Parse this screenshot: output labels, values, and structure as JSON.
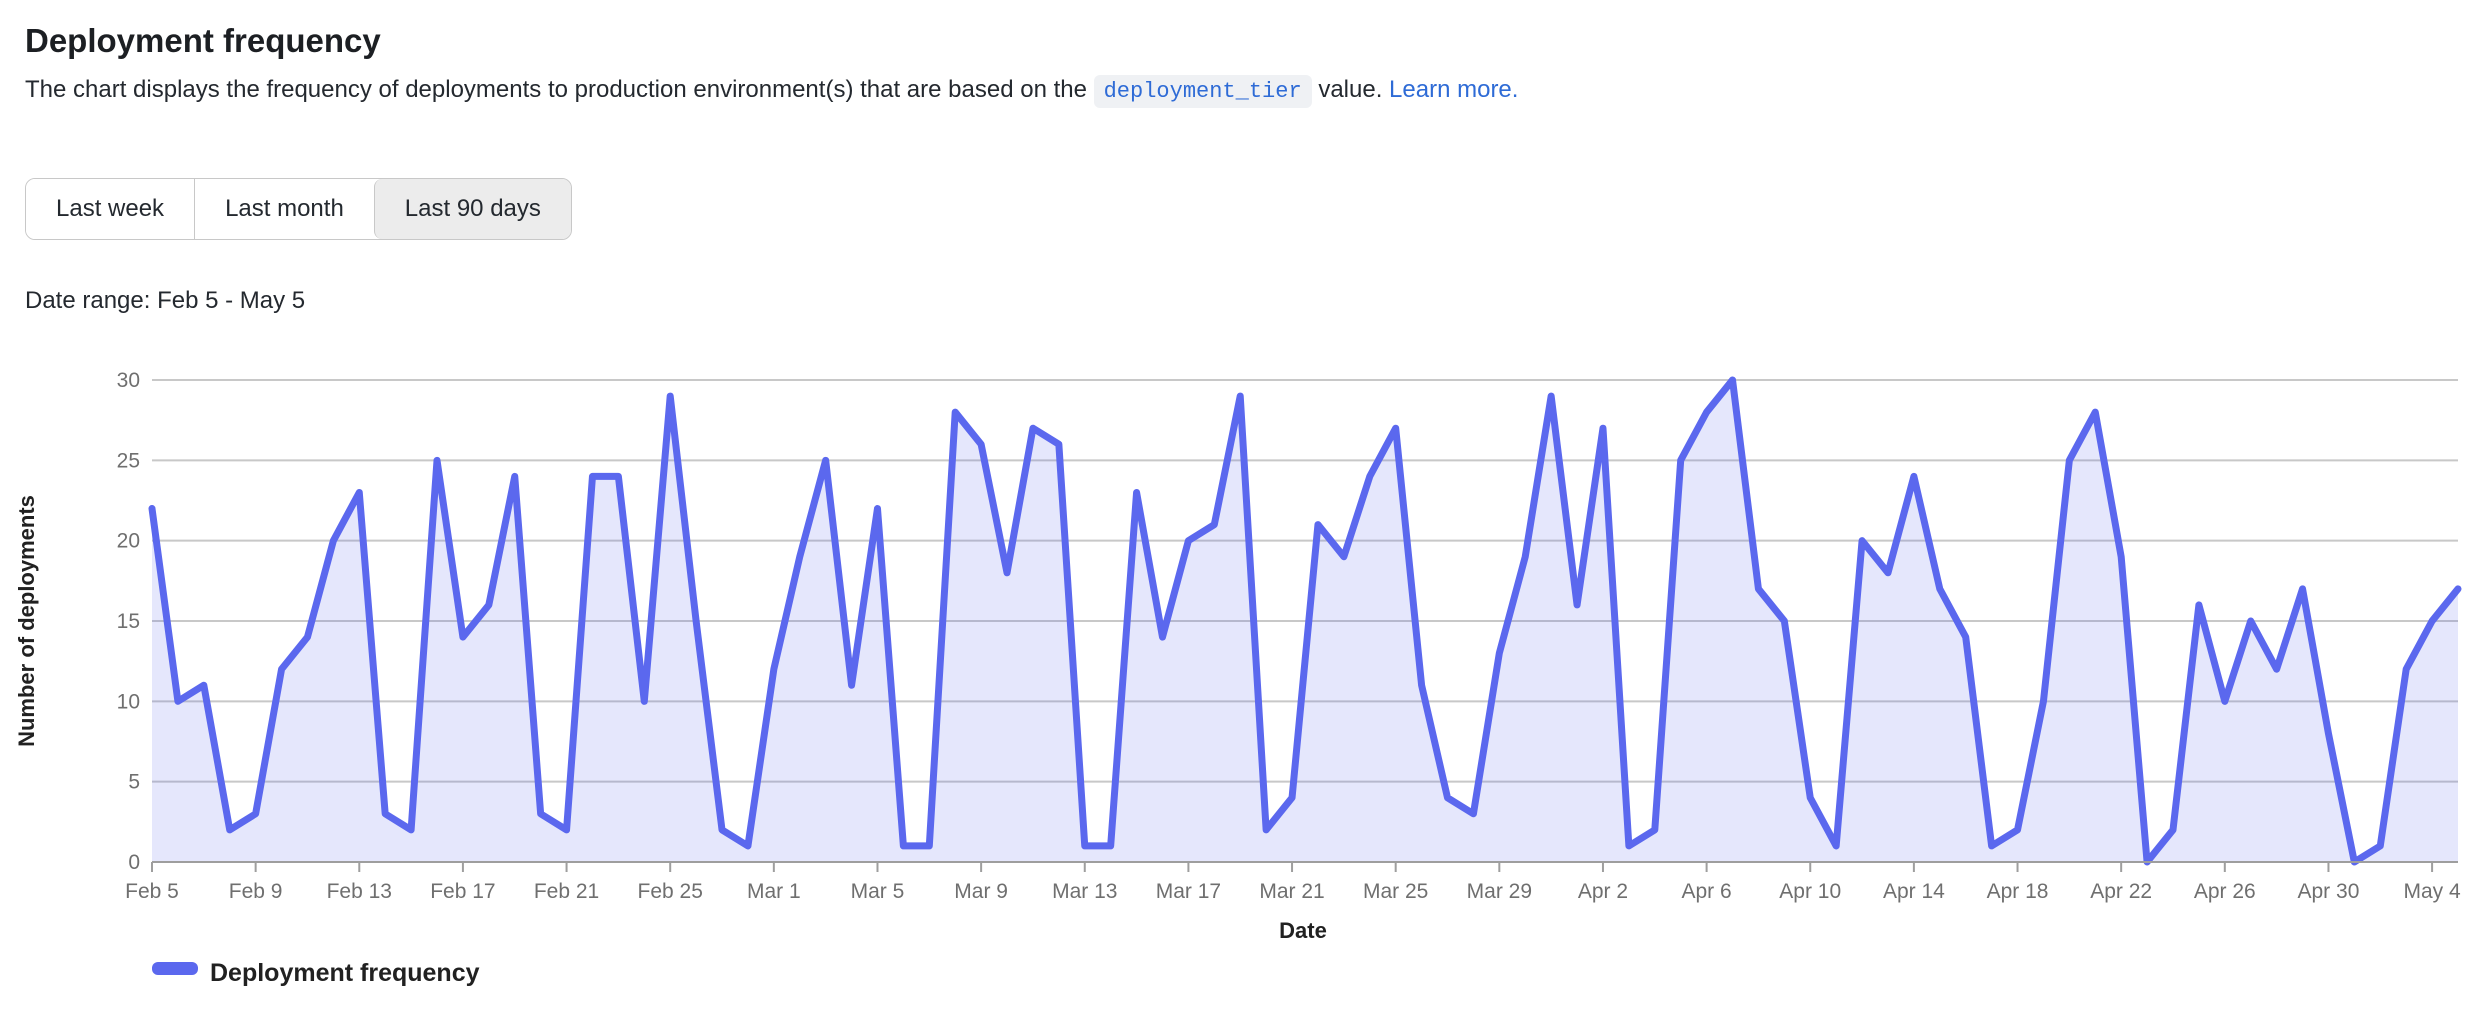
{
  "page": {
    "title": "Deployment frequency",
    "description_prefix": "The chart displays the frequency of deployments to production environment(s) that are based on the ",
    "code_chip": "deployment_tier",
    "description_suffix": " value. ",
    "link_text": "Learn more.",
    "date_range_label": "Date range: Feb 5 - May 5"
  },
  "time_range_buttons": [
    {
      "label": "Last week",
      "selected": false
    },
    {
      "label": "Last month",
      "selected": false
    },
    {
      "label": "Last 90 days",
      "selected": true
    }
  ],
  "chart_data": {
    "type": "area",
    "title": "Deployment frequency",
    "xlabel": "Date",
    "ylabel": "Number of deployments",
    "legend": [
      "Deployment frequency"
    ],
    "legend_position": "bottom-left",
    "grid": true,
    "ylim": [
      0,
      30
    ],
    "y_ticks": [
      0,
      5,
      10,
      15,
      20,
      25,
      30
    ],
    "x_label_every": 4,
    "x": [
      "Feb 5",
      "Feb 6",
      "Feb 7",
      "Feb 8",
      "Feb 9",
      "Feb 10",
      "Feb 11",
      "Feb 12",
      "Feb 13",
      "Feb 14",
      "Feb 15",
      "Feb 16",
      "Feb 17",
      "Feb 18",
      "Feb 19",
      "Feb 20",
      "Feb 21",
      "Feb 22",
      "Feb 23",
      "Feb 24",
      "Feb 25",
      "Feb 26",
      "Feb 27",
      "Feb 28",
      "Mar 1",
      "Mar 2",
      "Mar 3",
      "Mar 4",
      "Mar 5",
      "Mar 6",
      "Mar 7",
      "Mar 8",
      "Mar 9",
      "Mar 10",
      "Mar 11",
      "Mar 12",
      "Mar 13",
      "Mar 14",
      "Mar 15",
      "Mar 16",
      "Mar 17",
      "Mar 18",
      "Mar 19",
      "Mar 20",
      "Mar 21",
      "Mar 22",
      "Mar 23",
      "Mar 24",
      "Mar 25",
      "Mar 26",
      "Mar 27",
      "Mar 28",
      "Mar 29",
      "Mar 30",
      "Mar 31",
      "Apr 1",
      "Apr 2",
      "Apr 3",
      "Apr 4",
      "Apr 5",
      "Apr 6",
      "Apr 7",
      "Apr 8",
      "Apr 9",
      "Apr 10",
      "Apr 11",
      "Apr 12",
      "Apr 13",
      "Apr 14",
      "Apr 15",
      "Apr 16",
      "Apr 17",
      "Apr 18",
      "Apr 19",
      "Apr 20",
      "Apr 21",
      "Apr 22",
      "Apr 23",
      "Apr 24",
      "Apr 25",
      "Apr 26",
      "Apr 27",
      "Apr 28",
      "Apr 29",
      "Apr 30",
      "May 1",
      "May 2",
      "May 3",
      "May 4",
      "May 5"
    ],
    "values": [
      22,
      10,
      11,
      2,
      3,
      12,
      14,
      20,
      23,
      3,
      2,
      25,
      14,
      16,
      24,
      3,
      2,
      24,
      24,
      10,
      29,
      15,
      2,
      1,
      12,
      19,
      25,
      11,
      22,
      1,
      1,
      28,
      26,
      18,
      27,
      26,
      1,
      1,
      23,
      14,
      20,
      21,
      29,
      2,
      4,
      21,
      19,
      24,
      27,
      11,
      4,
      3,
      13,
      19,
      29,
      16,
      27,
      1,
      2,
      25,
      28,
      30,
      17,
      15,
      4,
      1,
      20,
      18,
      24,
      17,
      14,
      1,
      2,
      10,
      25,
      28,
      19,
      0,
      2,
      16,
      10,
      15,
      12,
      17,
      8,
      0,
      1,
      12,
      15,
      17
    ],
    "colors": {
      "line": "#5b68ee",
      "fill": "rgba(91,104,238,0.16)",
      "grid": "#c8c8c8",
      "axis": "#9e9e9e",
      "tick_text": "#6f6f6f",
      "accent_link": "#2e6bd6"
    }
  }
}
